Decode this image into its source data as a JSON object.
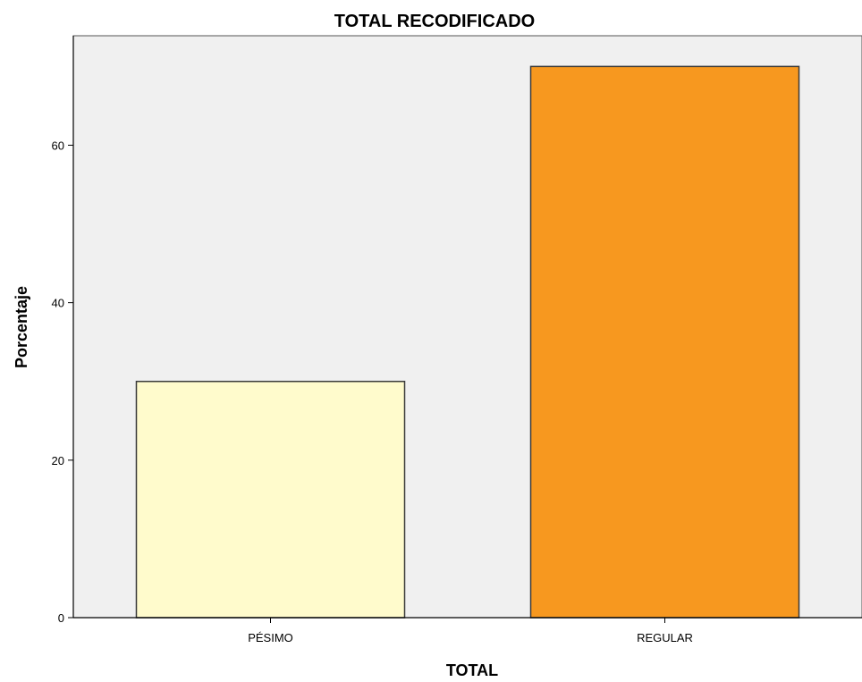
{
  "chart_data": {
    "type": "bar",
    "title": "TOTAL RECODIFICADO",
    "xlabel": "TOTAL",
    "ylabel": "Porcentaje",
    "categories": [
      "PÉSIMO",
      "REGULAR"
    ],
    "values": [
      30,
      70
    ],
    "colors": [
      "#FFFBCC",
      "#F7981F"
    ],
    "yticks": [
      0,
      20,
      40,
      60
    ],
    "ylim": [
      0,
      73.9
    ],
    "grid": false,
    "legend": "none",
    "plot_background": "#F0F0F0"
  }
}
